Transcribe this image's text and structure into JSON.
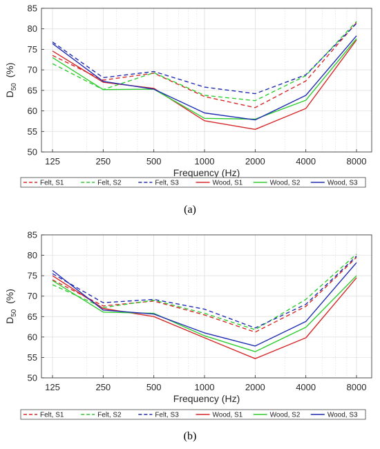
{
  "figure": {
    "captions": [
      "(a)",
      "(b)"
    ]
  },
  "chart_data": [
    {
      "type": "line",
      "panel": "a",
      "caption": "(a)",
      "xlabel": "Frequency (Hz)",
      "ylabel": "D",
      "ylabel_sub": "50",
      "ylabel_unit": "(%)",
      "x_scale": "log",
      "x": [
        125,
        250,
        500,
        1000,
        2000,
        4000,
        8000
      ],
      "x_tick_labels": [
        "125",
        "250",
        "500",
        "1000",
        "2000",
        "4000",
        "8000"
      ],
      "ylim": [
        50,
        85
      ],
      "y_ticks": [
        50,
        55,
        60,
        65,
        70,
        75,
        80,
        85
      ],
      "grid": true,
      "legend_position": "bottom",
      "series": [
        {
          "name": "Felt, S1",
          "color": "#d62728",
          "dashed": true,
          "values": [
            73.5,
            67.5,
            69.2,
            63.5,
            60.8,
            67.3,
            81.5
          ]
        },
        {
          "name": "Felt, S2",
          "color": "#2ecc2e",
          "dashed": true,
          "values": [
            71.5,
            65.2,
            69.3,
            63.8,
            62.5,
            68.6,
            81.8
          ]
        },
        {
          "name": "Felt, S3",
          "color": "#1f2bb0",
          "dashed": true,
          "values": [
            76.8,
            68.1,
            69.6,
            65.8,
            64.2,
            68.8,
            81.3
          ]
        },
        {
          "name": "Wood, S1",
          "color": "#d62728",
          "dashed": false,
          "values": [
            74.6,
            67.0,
            65.5,
            57.6,
            55.5,
            60.6,
            77.3
          ]
        },
        {
          "name": "Wood, S2",
          "color": "#2ecc2e",
          "dashed": false,
          "values": [
            73.0,
            65.2,
            65.3,
            58.2,
            58.0,
            62.6,
            77.6
          ]
        },
        {
          "name": "Wood, S3",
          "color": "#1f2bb0",
          "dashed": false,
          "values": [
            76.4,
            67.2,
            65.3,
            59.5,
            57.8,
            63.8,
            78.3
          ]
        }
      ]
    },
    {
      "type": "line",
      "panel": "b",
      "caption": "(b)",
      "xlabel": "Frequency (Hz)",
      "ylabel": "D",
      "ylabel_sub": "50",
      "ylabel_unit": "(%)",
      "x_scale": "log",
      "x": [
        125,
        250,
        500,
        1000,
        2000,
        4000,
        8000
      ],
      "x_tick_labels": [
        "125",
        "250",
        "500",
        "1000",
        "2000",
        "4000",
        "8000"
      ],
      "ylim": [
        50,
        85
      ],
      "y_ticks": [
        50,
        55,
        60,
        65,
        70,
        75,
        80,
        85
      ],
      "grid": true,
      "legend_position": "bottom",
      "series": [
        {
          "name": "Felt, S1",
          "color": "#d62728",
          "dashed": true,
          "values": [
            74.0,
            67.6,
            68.8,
            65.4,
            61.2,
            67.5,
            79.5
          ]
        },
        {
          "name": "Felt, S2",
          "color": "#2ecc2e",
          "dashed": true,
          "values": [
            72.8,
            67.2,
            69.0,
            65.8,
            61.8,
            69.2,
            80.3
          ]
        },
        {
          "name": "Felt, S3",
          "color": "#1f2bb0",
          "dashed": true,
          "values": [
            75.5,
            68.4,
            69.2,
            66.8,
            62.2,
            68.0,
            79.8
          ]
        },
        {
          "name": "Wood, S1",
          "color": "#d62728",
          "dashed": false,
          "values": [
            75.0,
            67.0,
            65.0,
            59.8,
            54.7,
            59.8,
            74.5
          ]
        },
        {
          "name": "Wood, S2",
          "color": "#2ecc2e",
          "dashed": false,
          "values": [
            73.8,
            66.1,
            65.8,
            60.3,
            56.4,
            62.4,
            75.0
          ]
        },
        {
          "name": "Wood, S3",
          "color": "#1f2bb0",
          "dashed": false,
          "values": [
            76.3,
            66.6,
            65.6,
            61.0,
            57.8,
            63.8,
            78.2
          ]
        }
      ]
    }
  ]
}
